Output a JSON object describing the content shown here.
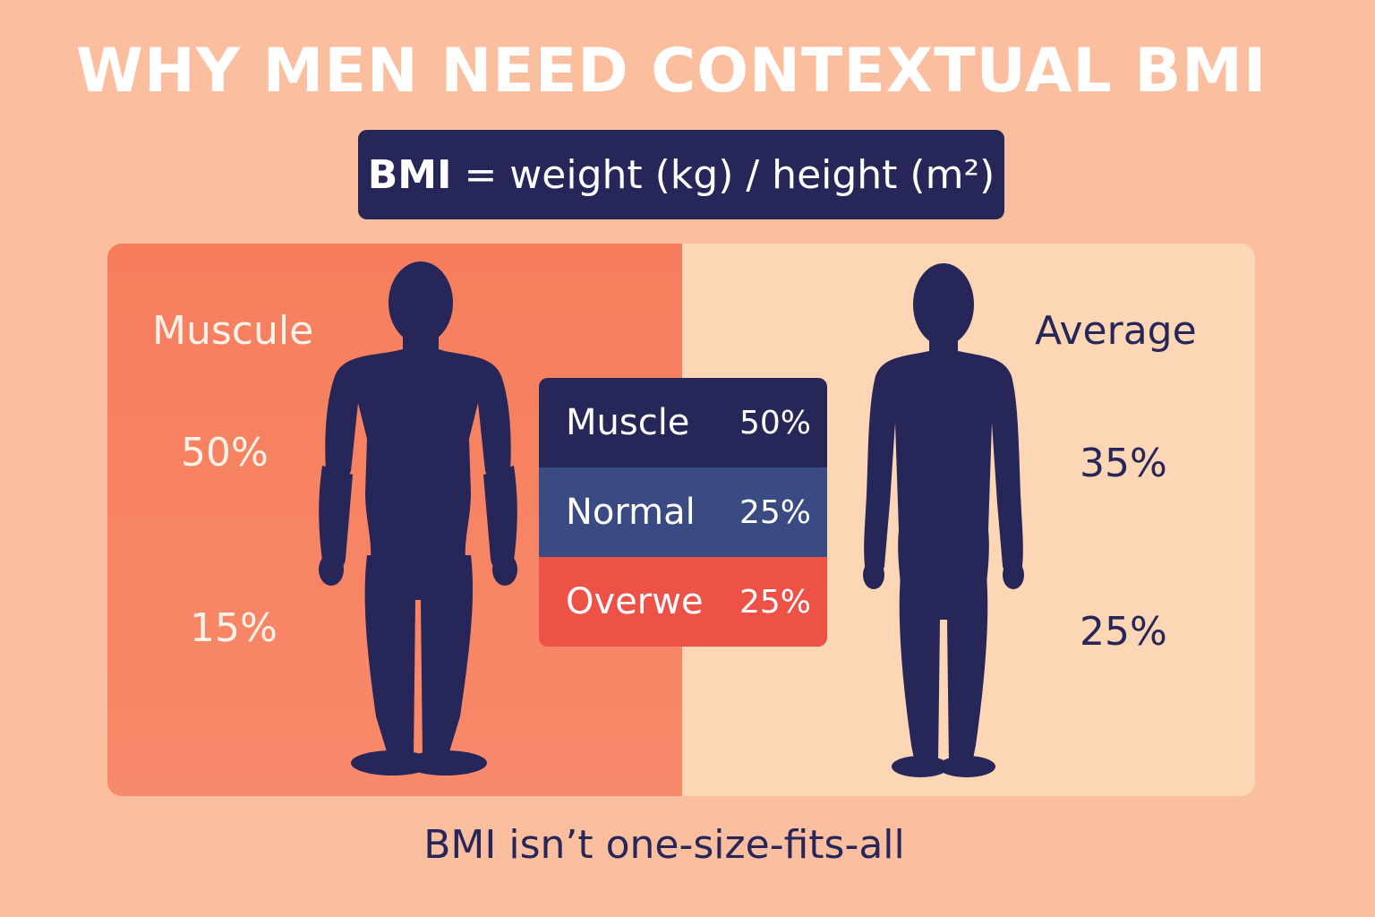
{
  "title": "WHY MEN NEED CONTEXTUAL BMI",
  "formula": {
    "lhs": "BMI",
    "rhs": "= weight (kg) / height (m²)"
  },
  "left": {
    "label": "Muscule",
    "value_top": "50%",
    "value_bottom": "15%",
    "figure_icon": "muscular-man-silhouette-icon"
  },
  "right": {
    "label": "Average",
    "value_top": "35%",
    "value_bottom": "25%",
    "figure_icon": "average-man-silhouette-icon"
  },
  "stats": [
    {
      "name": "Muscle",
      "value": "50%"
    },
    {
      "name": "Normal",
      "value": "25%"
    },
    {
      "name": "Overwe",
      "value": "25%"
    }
  ],
  "footer": "BMI isn’t one-size-fits-all",
  "colors": {
    "background": "#FBBE9E",
    "navy": "#262659",
    "left_panel": "#F67E5D",
    "right_panel": "#FDD6B6",
    "normal_row": "#3A4A82",
    "overweight_row": "#EE5247"
  }
}
